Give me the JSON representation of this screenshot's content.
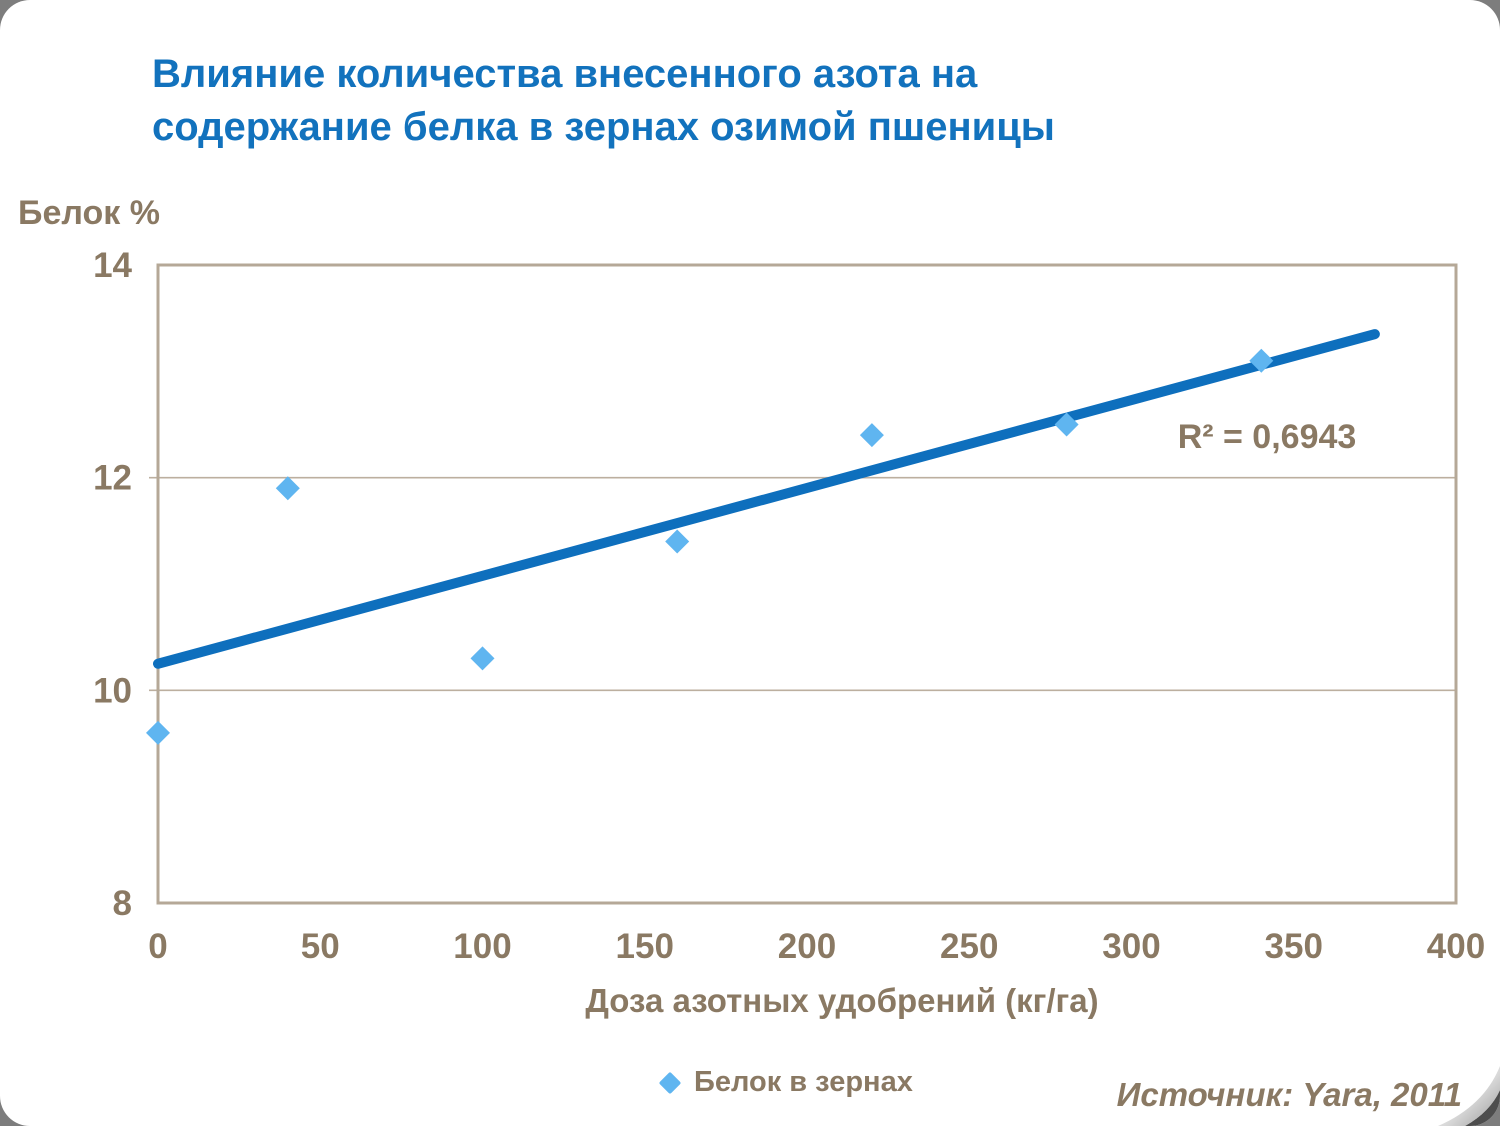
{
  "title": "Влияние количества внесенного азота на\nсодержание белка в зернах озимой пшеницы",
  "source": "Источник: Yara, 2011",
  "legend": {
    "label": "Белок в зернах",
    "marker": "diamond-icon"
  },
  "colors": {
    "title_blue": "#1272BD",
    "trend_line_blue": "#0E6FBD",
    "marker_light_blue": "#5FB5F0",
    "text_brown": "#8A7963",
    "axis_border_tan": "#B5A897",
    "gridline_tan": "#BCAF9F"
  },
  "chart_data": {
    "type": "scatter",
    "title": "Влияние количества внесенного азота на содержание белка в зернах озимой пшеницы",
    "xlabel": "Доза азотных удобрений (кг/га)",
    "ylabel": "Белок %",
    "xlim": [
      0,
      400
    ],
    "ylim": [
      8,
      14
    ],
    "x_ticks": [
      0,
      50,
      100,
      150,
      200,
      250,
      300,
      350,
      400
    ],
    "y_ticks": [
      8,
      10,
      12,
      14
    ],
    "gridlines_y": [
      10,
      12
    ],
    "grid": true,
    "legend_position": "bottom",
    "series": [
      {
        "name": "Белок в зернах",
        "points": [
          [
            0,
            9.6
          ],
          [
            40,
            11.9
          ],
          [
            100,
            10.3
          ],
          [
            160,
            11.4
          ],
          [
            220,
            12.4
          ],
          [
            280,
            12.5
          ],
          [
            340,
            13.1
          ]
        ]
      }
    ],
    "trendline": {
      "x_start": 0,
      "y_start": 10.25,
      "x_end": 375,
      "y_end": 13.35,
      "r_squared_label": "R² = 0,6943"
    }
  }
}
